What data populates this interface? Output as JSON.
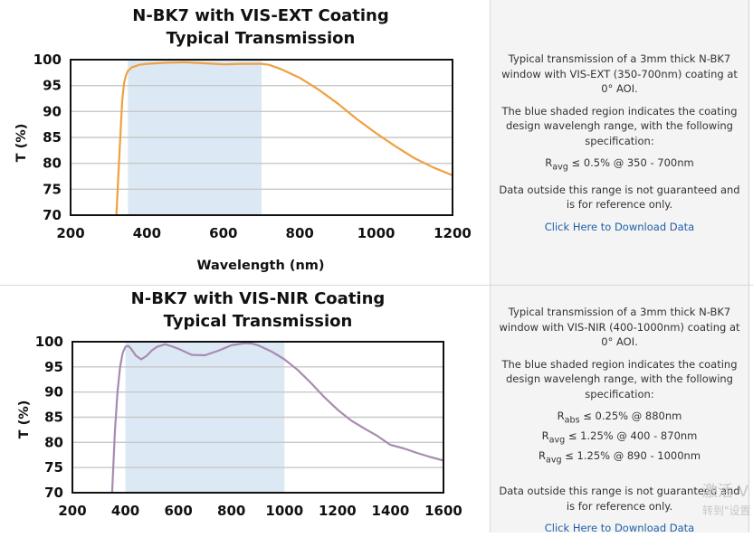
{
  "chart_data": [
    {
      "type": "line",
      "title": "N-BK7 with VIS-EXT Coating",
      "subtitle": "Typical Transmission",
      "xlabel": "Wavelength (nm)",
      "ylabel": "T (%)",
      "xlim": [
        200,
        1200
      ],
      "ylim": [
        70,
        100
      ],
      "xticks": [
        200,
        400,
        600,
        800,
        1000,
        1200
      ],
      "yticks": [
        70,
        75,
        80,
        85,
        90,
        95,
        100
      ],
      "grid": true,
      "shaded_region": [
        350,
        700
      ],
      "series_color": "#f0a040",
      "shade_color": "#dce9f5",
      "series": [
        {
          "x": [
            320,
            330,
            335,
            340,
            345,
            350,
            360,
            380,
            400,
            450,
            500,
            550,
            600,
            650,
            700,
            720,
            750,
            800,
            850,
            900,
            950,
            1000,
            1050,
            1100,
            1150,
            1200
          ],
          "y": [
            70,
            85,
            92,
            95.5,
            97,
            97.8,
            98.5,
            99.0,
            99.2,
            99.4,
            99.5,
            99.3,
            99.1,
            99.2,
            99.2,
            99.0,
            98.2,
            96.5,
            94.2,
            91.5,
            88.5,
            85.8,
            83.3,
            81.0,
            79.2,
            77.7
          ]
        }
      ]
    },
    {
      "type": "line",
      "title": "N-BK7 with VIS-NIR Coating",
      "subtitle": "Typical Transmission",
      "xlabel": "",
      "ylabel": "T (%)",
      "xlim": [
        200,
        1600
      ],
      "ylim": [
        70,
        100
      ],
      "xticks": [
        200,
        400,
        600,
        800,
        1000,
        1200,
        1400,
        1600
      ],
      "yticks": [
        70,
        75,
        80,
        85,
        90,
        95,
        100
      ],
      "grid": true,
      "shaded_region": [
        400,
        1000
      ],
      "series_color": "#a78bb0",
      "shade_color": "#dce9f5",
      "series": [
        {
          "x": [
            350,
            360,
            370,
            380,
            390,
            400,
            410,
            420,
            440,
            460,
            480,
            500,
            520,
            550,
            580,
            600,
            650,
            700,
            750,
            800,
            850,
            880,
            900,
            950,
            1000,
            1050,
            1100,
            1150,
            1200,
            1250,
            1300,
            1350,
            1400,
            1450,
            1500,
            1550,
            1600
          ],
          "y": [
            70,
            82,
            90,
            95,
            97.8,
            99.0,
            99.2,
            98.7,
            97.2,
            96.5,
            97.2,
            98.3,
            99.0,
            99.5,
            99.0,
            98.6,
            97.4,
            97.3,
            98.2,
            99.3,
            99.7,
            99.6,
            99.3,
            98.1,
            96.5,
            94.4,
            91.8,
            89.0,
            86.5,
            84.4,
            82.8,
            81.3,
            79.5,
            78.8,
            77.9,
            77.1,
            76.4
          ]
        }
      ]
    }
  ],
  "panels": [
    {
      "description": "Typical transmission of a 3mm thick N-BK7 window with VIS-EXT (350-700nm) coating at 0° AOI.",
      "shaded_note": "The blue shaded region indicates the coating design wavelengh range, with the following specification:",
      "specs": [
        {
          "symbol": "R",
          "subscript": "avg",
          "text": " ≤ 0.5% @ 350 - 700nm"
        }
      ],
      "disclaimer": "Data outside this range is not guaranteed and is for reference only.",
      "link": "Click Here to Download Data"
    },
    {
      "description": "Typical transmission of a 3mm thick N-BK7 window with VIS-NIR (400-1000nm) coating at 0° AOI.",
      "shaded_note": "The blue shaded region indicates the coating design wavelengh range, with the following specification:",
      "specs": [
        {
          "symbol": "R",
          "subscript": "abs",
          "text": " ≤ 0.25% @ 880nm"
        },
        {
          "symbol": "R",
          "subscript": "avg",
          "text": " ≤ 1.25% @ 400 - 870nm"
        },
        {
          "symbol": "R",
          "subscript": "avg",
          "text": " ≤ 1.25% @ 890 - 1000nm"
        }
      ],
      "disclaimer": "Data outside this range is not guaranteed and is for reference only.",
      "link": "Click Here to Download Data"
    }
  ],
  "watermark": {
    "line1": "激活 V",
    "line2": "转到\"设置"
  }
}
